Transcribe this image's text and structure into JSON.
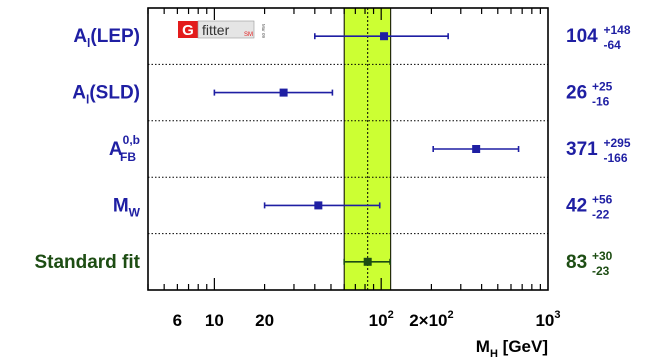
{
  "logo": {
    "box_letter": "G",
    "word": "fitter",
    "tag": "SM",
    "vertical_text": "Mar 09"
  },
  "chart_data": {
    "type": "scatter",
    "xscale": "log",
    "xlim": [
      4,
      1000
    ],
    "xlabel": {
      "main": "M",
      "sub": "H",
      "unit": "[GeV]"
    },
    "x_ticks": [
      {
        "value": 6,
        "base": "6"
      },
      {
        "value": 10,
        "base": "10"
      },
      {
        "value": 20,
        "base": "20"
      },
      {
        "value": 100,
        "base": "10",
        "sup": "2"
      },
      {
        "value": 200,
        "base": "2×10",
        "sup": "2"
      },
      {
        "value": 1000,
        "base": "10",
        "sup": "3"
      }
    ],
    "band": {
      "from": 60,
      "to": 114,
      "color": "#ccff33"
    },
    "band_center": 83,
    "rows": [
      {
        "label_main": "A",
        "label_sub": "l",
        "label_suffix": "(LEP)",
        "label_sup": "",
        "value": 104,
        "err_plus": 148,
        "err_minus": 64,
        "low": 40,
        "high": 252,
        "color": "#1f1fa3"
      },
      {
        "label_main": "A",
        "label_sub": "l",
        "label_suffix": "(SLD)",
        "label_sup": "",
        "value": 26,
        "err_plus": 25,
        "err_minus": 16,
        "low": 10,
        "high": 51,
        "color": "#1f1fa3"
      },
      {
        "label_main": "A",
        "label_sub": "FB",
        "label_suffix": "",
        "label_sup": "0,b",
        "value": 371,
        "err_plus": 295,
        "err_minus": 166,
        "low": 205,
        "high": 666,
        "color": "#1f1fa3"
      },
      {
        "label_main": "M",
        "label_sub": "W",
        "label_suffix": "",
        "label_sup": "",
        "value": 42,
        "err_plus": 56,
        "err_minus": 22,
        "low": 20,
        "high": 98,
        "color": "#1f1fa3"
      },
      {
        "label_main": "Standard fit",
        "label_sub": "",
        "label_suffix": "",
        "label_sup": "",
        "value": 83,
        "err_plus": 30,
        "err_minus": 23,
        "low": 60,
        "high": 113,
        "color": "#1d4d13"
      }
    ]
  }
}
